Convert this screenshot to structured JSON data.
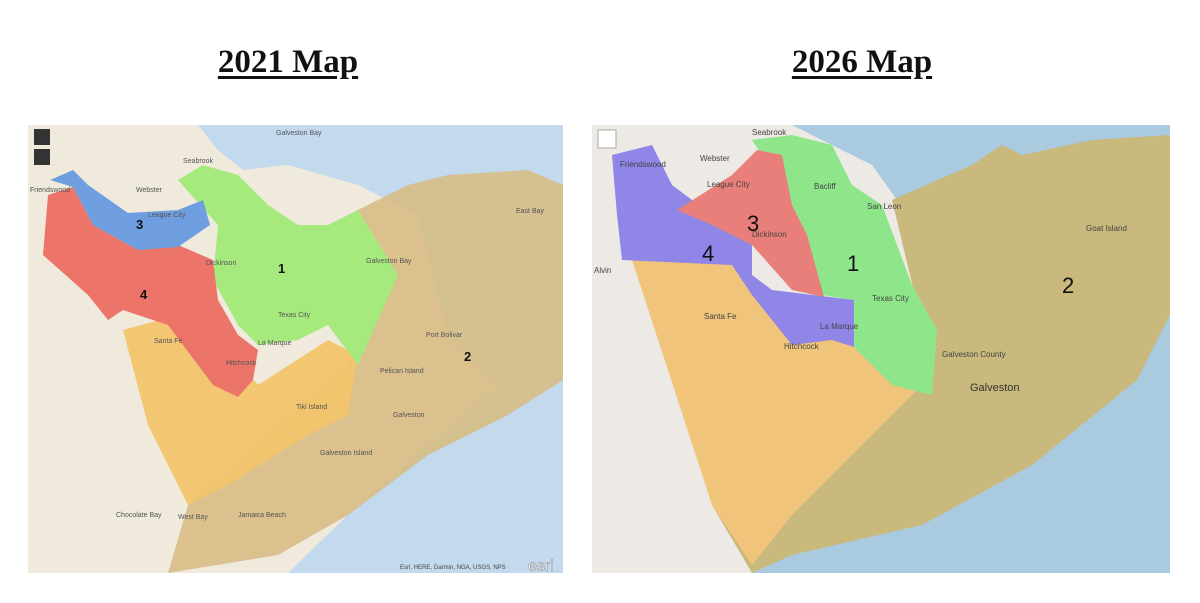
{
  "maps": [
    {
      "title": "2021 Map",
      "districts": [
        "1",
        "2",
        "3",
        "4"
      ],
      "places": [
        "Galveston Bay",
        "Seabrook",
        "Friendswood",
        "Webster",
        "League City",
        "Dickinson",
        "Texas City",
        "La Marque",
        "Santa Fe",
        "Hitchcock",
        "Port Bolivar",
        "Galveston",
        "Tiki Island",
        "Jamaica Beach",
        "Chocolate Bay",
        "West Bay",
        "East Bay",
        "Pelican Island",
        "Galveston Island",
        "Galveston Bay"
      ],
      "attribution": "Esri, HERE, Garmin, NGA, USGS, NPS",
      "logo": "esri"
    },
    {
      "title": "2026 Map",
      "districts": [
        "1",
        "2",
        "3",
        "4"
      ],
      "places": [
        "Seabrook",
        "Friendswood",
        "Webster",
        "League City",
        "Bacliff",
        "San Leon",
        "Dickinson",
        "Texas City",
        "La Marque",
        "Hitchcock",
        "Santa Fe",
        "Alvin",
        "Galveston",
        "Goat Island",
        "Galveston County"
      ]
    }
  ]
}
